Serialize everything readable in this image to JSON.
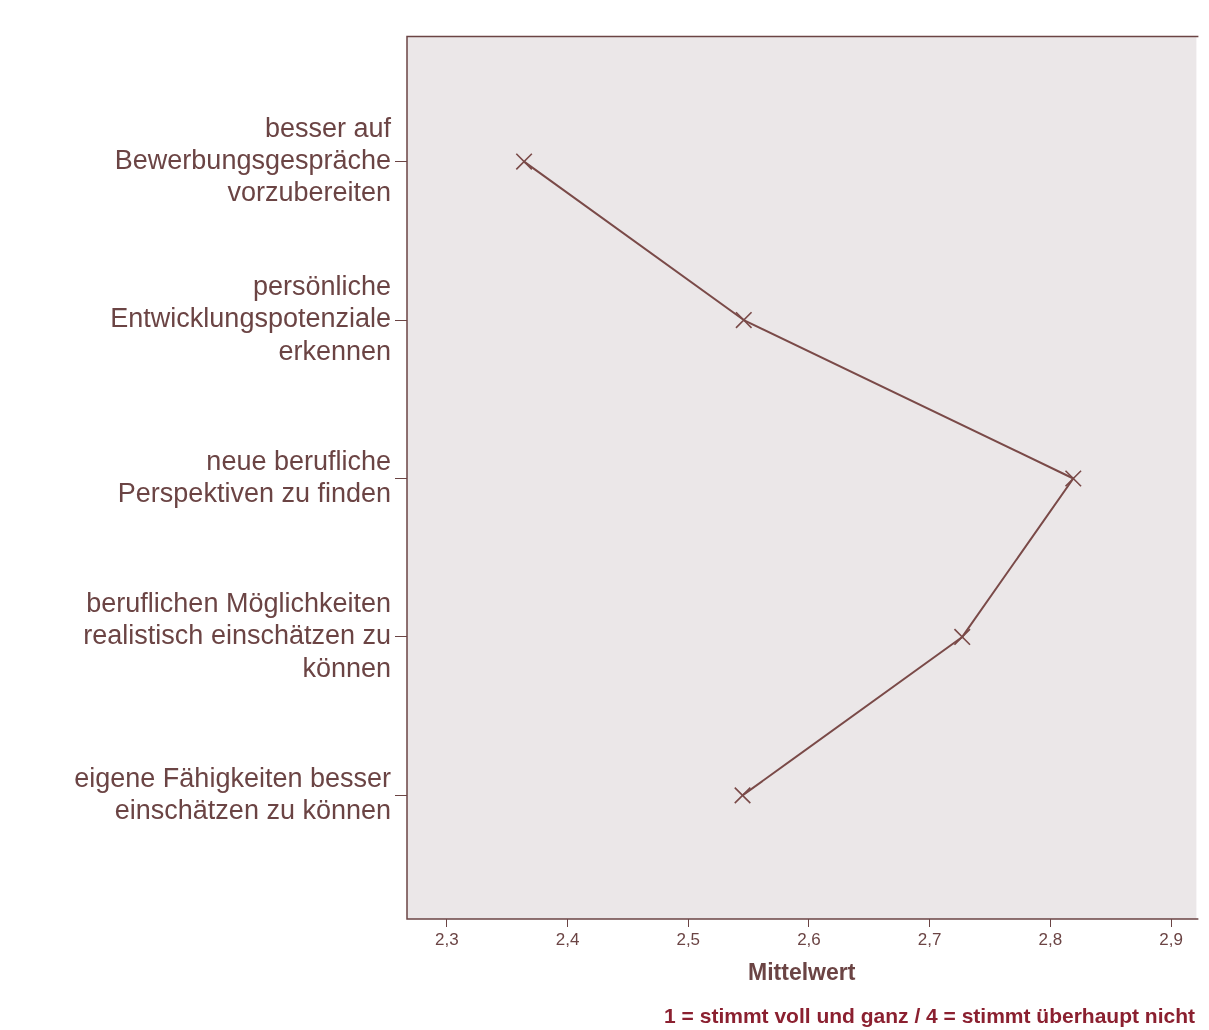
{
  "chart_data": {
    "type": "line",
    "orientation": "horizontal",
    "categories": [
      "besser auf\nBewerbungsgespräche\nvorzubereiten",
      "persönliche\nEntwicklungspotenziale\nerkennen",
      "neue berufliche\nPerspektiven zu finden",
      "beruflichen Möglichkeiten\nrealistisch einschätzen zu\nkönnen",
      "eigene Fähigkeiten besser\neinschätzen zu können"
    ],
    "values": [
      2.364,
      2.546,
      2.819,
      2.727,
      2.545
    ],
    "color": "#7a4a48",
    "marker": "cross",
    "line_style": "solid",
    "grid": false,
    "legend": false,
    "xlim": [
      2.267,
      2.921
    ],
    "xticks": [
      {
        "value": 2.3,
        "label": "2,3"
      },
      {
        "value": 2.4,
        "label": "2,4"
      },
      {
        "value": 2.5,
        "label": "2,5"
      },
      {
        "value": 2.6,
        "label": "2,6"
      },
      {
        "value": 2.7,
        "label": "2,7"
      },
      {
        "value": 2.8,
        "label": "2,8"
      },
      {
        "value": 2.9,
        "label": "2,9"
      }
    ],
    "xlabel": "Mittelwert",
    "annotations": [
      "1 = stimmt voll und ganz / 4 = stimmt überhaupt nicht"
    ]
  }
}
